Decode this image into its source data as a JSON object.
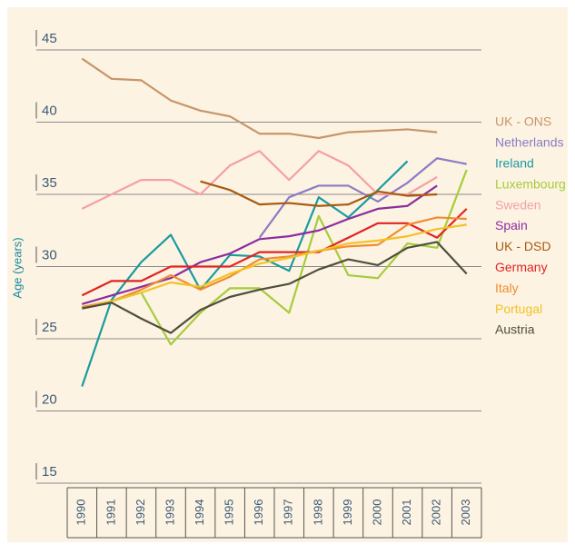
{
  "chart_data": {
    "type": "line",
    "y_label": "Age (years)",
    "categories": [
      "1990",
      "1991",
      "1992",
      "1993",
      "1994",
      "1995",
      "1996",
      "1997",
      "1998",
      "1999",
      "2000",
      "2001",
      "2002",
      "2003"
    ],
    "ylim": [
      15,
      45
    ],
    "yticks": [
      15,
      20,
      25,
      30,
      35,
      40,
      45
    ],
    "grid": true,
    "legend": "right",
    "series": [
      {
        "name": "UK - ONS",
        "color": "#c8956a",
        "values": [
          44.4,
          43.0,
          42.9,
          41.5,
          40.8,
          40.4,
          39.2,
          39.2,
          38.9,
          39.3,
          39.4,
          39.5,
          39.3,
          null
        ]
      },
      {
        "name": "Netherlands",
        "color": "#8a7cc4",
        "values": [
          null,
          null,
          null,
          null,
          null,
          null,
          32.0,
          34.8,
          35.6,
          35.6,
          34.5,
          35.8,
          37.5,
          37.1
        ]
      },
      {
        "name": "Ireland",
        "color": "#1a9ba0",
        "values": [
          21.7,
          27.7,
          30.3,
          32.2,
          28.4,
          30.8,
          30.7,
          29.7,
          34.8,
          33.4,
          35.3,
          37.3,
          null,
          null
        ]
      },
      {
        "name": "Luxembourg",
        "color": "#a6cc3c",
        "values": [
          27.2,
          27.6,
          28.2,
          24.6,
          26.8,
          28.5,
          28.5,
          26.8,
          33.5,
          29.4,
          29.2,
          31.6,
          31.3,
          36.7
        ]
      },
      {
        "name": "Sweden",
        "color": "#f4a0a8",
        "values": [
          34.0,
          35.0,
          36.0,
          36.0,
          35.0,
          37.0,
          38.0,
          36.0,
          38.0,
          37.0,
          35.0,
          35.0,
          36.2,
          null
        ]
      },
      {
        "name": "Spain",
        "color": "#8a2ea0",
        "values": [
          27.4,
          28.0,
          28.6,
          29.2,
          30.3,
          30.9,
          31.9,
          32.1,
          32.5,
          33.3,
          34.0,
          34.2,
          35.6,
          null
        ]
      },
      {
        "name": "UK - DSD",
        "color": "#a85a10",
        "values": [
          null,
          null,
          null,
          null,
          35.9,
          35.3,
          34.3,
          34.4,
          34.2,
          34.3,
          35.2,
          34.9,
          35.0,
          null
        ]
      },
      {
        "name": "Germany",
        "color": "#e02424",
        "values": [
          28,
          29,
          29,
          30,
          30,
          30,
          31,
          31,
          31,
          32,
          33,
          33,
          32,
          34
        ]
      },
      {
        "name": "Italy",
        "color": "#f08c30",
        "values": [
          27.2,
          27.6,
          28.4,
          29.4,
          28.4,
          29.3,
          30.5,
          30.7,
          31.1,
          31.4,
          31.5,
          32.9,
          33.4,
          33.3
        ]
      },
      {
        "name": "Portugal",
        "color": "#f2c224",
        "values": [
          27.1,
          27.6,
          28.2,
          28.9,
          28.6,
          29.5,
          30.2,
          30.6,
          31.1,
          31.6,
          31.8,
          32.1,
          32.6,
          32.9
        ]
      },
      {
        "name": "Austria",
        "color": "#4e4e3e",
        "values": [
          27.1,
          27.5,
          26.4,
          25.4,
          27.0,
          27.9,
          28.4,
          28.8,
          29.8,
          30.5,
          30.1,
          31.3,
          31.7,
          29.5
        ]
      }
    ]
  }
}
